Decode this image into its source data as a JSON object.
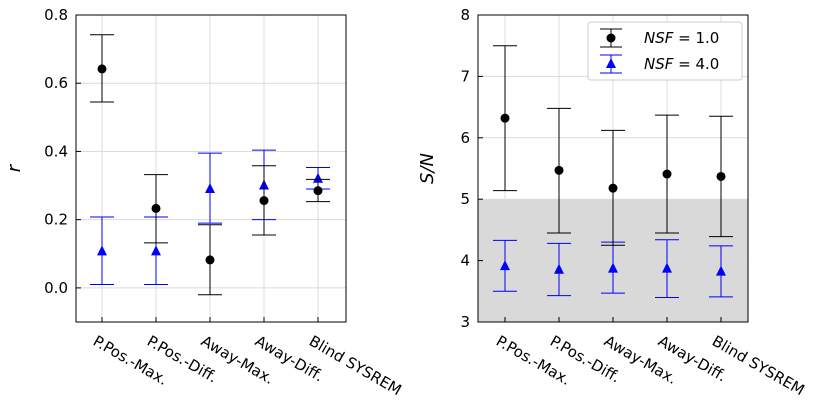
{
  "colors": {
    "series_black": "#000000",
    "series_blue": "#0000ff",
    "shade": "#d9d9d9",
    "grid": "#dcdcdc"
  },
  "chart_data": [
    {
      "type": "scatter",
      "categories": [
        "P.Pos.-Max.",
        "P.Pos.-Diff.",
        "Away-Max.",
        "Away-Diff.",
        "Blind SYSREM"
      ],
      "xlabel": "",
      "ylabel": "r",
      "ylim": [
        -0.1,
        0.8
      ],
      "yticks": [
        "0.0",
        "0.2",
        "0.4",
        "0.6",
        "0.8"
      ],
      "ytick_values": [
        0.0,
        0.2,
        0.4,
        0.6,
        0.8
      ],
      "grid": true,
      "series": [
        {
          "name": "NSF = 1.0",
          "marker": "circle",
          "color": "#000000",
          "values": [
            0.642,
            0.233,
            0.082,
            0.256,
            0.285
          ],
          "err_low": [
            0.545,
            0.132,
            -0.02,
            0.155,
            0.253
          ],
          "err_high": [
            0.742,
            0.332,
            0.185,
            0.358,
            0.318
          ]
        },
        {
          "name": "NSF = 4.0",
          "marker": "triangle",
          "color": "#0000ff",
          "values": [
            0.107,
            0.107,
            0.29,
            0.3,
            0.32
          ],
          "err_low": [
            0.01,
            0.01,
            0.19,
            0.2,
            0.29
          ],
          "err_high": [
            0.208,
            0.208,
            0.395,
            0.404,
            0.353
          ]
        }
      ]
    },
    {
      "type": "scatter",
      "categories": [
        "P.Pos.-Max.",
        "P.Pos.-Diff.",
        "Away-Max.",
        "Away-Diff.",
        "Blind SYSREM"
      ],
      "xlabel": "",
      "ylabel": "S/N",
      "ylim": [
        3,
        8
      ],
      "yticks": [
        "3",
        "4",
        "5",
        "6",
        "7",
        "8"
      ],
      "ytick_values": [
        3,
        4,
        5,
        6,
        7,
        8
      ],
      "grid": true,
      "shaded_region": [
        3,
        5
      ],
      "legend": {
        "position": "top-right",
        "entries": [
          {
            "label_prefix": "NSF",
            "label_suffix": " = 1.0",
            "marker": "circle",
            "color": "#000000"
          },
          {
            "label_prefix": "NSF",
            "label_suffix": " = 4.0",
            "marker": "triangle",
            "color": "#0000ff"
          }
        ]
      },
      "series": [
        {
          "name": "NSF = 1.0",
          "marker": "circle",
          "color": "#000000",
          "values": [
            6.32,
            5.47,
            5.18,
            5.41,
            5.37
          ],
          "err_low": [
            5.14,
            4.45,
            4.25,
            4.45,
            4.39
          ],
          "err_high": [
            7.5,
            6.48,
            6.12,
            6.37,
            6.35
          ]
        },
        {
          "name": "NSF = 4.0",
          "marker": "triangle",
          "color": "#0000ff",
          "values": [
            3.91,
            3.85,
            3.87,
            3.87,
            3.82
          ],
          "err_low": [
            3.5,
            3.43,
            3.47,
            3.4,
            3.41
          ],
          "err_high": [
            4.33,
            4.28,
            4.3,
            4.34,
            4.24
          ]
        }
      ]
    }
  ]
}
